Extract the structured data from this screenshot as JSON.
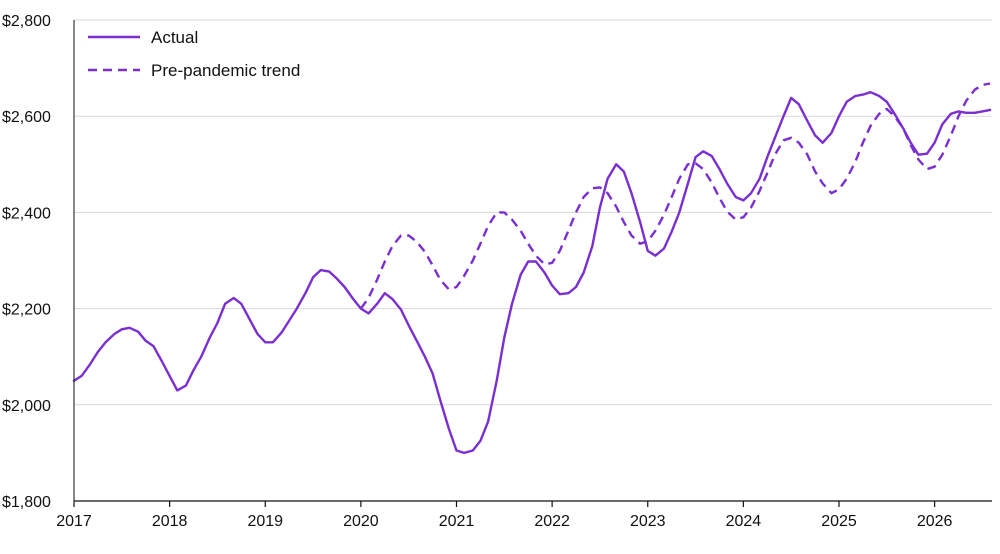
{
  "chart_data": {
    "type": "line",
    "title": "",
    "xlabel": "",
    "ylabel": "",
    "xlim": [
      2017.0,
      2026.6
    ],
    "ylim": [
      1800,
      2800
    ],
    "y_ticks": [
      1800,
      2000,
      2200,
      2400,
      2600,
      2800
    ],
    "y_tick_labels": [
      "$1,800",
      "$2,000",
      "$2,200",
      "$2,400",
      "$2,600",
      "$2,800"
    ],
    "x_ticks": [
      2017,
      2018,
      2019,
      2020,
      2021,
      2022,
      2023,
      2024,
      2025,
      2026
    ],
    "x_tick_labels": [
      "2017",
      "2018",
      "2019",
      "2020",
      "2021",
      "2022",
      "2023",
      "2024",
      "2025",
      "2026"
    ],
    "grid": "horizontal",
    "legend_position": "top-left",
    "colors": {
      "series": "#7b2fd0",
      "grid": "#d9d9d9",
      "axis": "#111111"
    },
    "series": [
      {
        "name": "Actual",
        "style": "solid",
        "x": [
          2017.0,
          2017.08,
          2017.17,
          2017.25,
          2017.33,
          2017.42,
          2017.5,
          2017.58,
          2017.67,
          2017.75,
          2017.83,
          2017.92,
          2018.0,
          2018.08,
          2018.17,
          2018.25,
          2018.33,
          2018.42,
          2018.5,
          2018.58,
          2018.67,
          2018.75,
          2018.83,
          2018.92,
          2019.0,
          2019.08,
          2019.17,
          2019.25,
          2019.33,
          2019.42,
          2019.5,
          2019.58,
          2019.67,
          2019.75,
          2019.83,
          2019.92,
          2020.0,
          2020.08,
          2020.17,
          2020.25,
          2020.33,
          2020.42,
          2020.5,
          2020.58,
          2020.67,
          2020.75,
          2020.83,
          2020.92,
          2021.0,
          2021.08,
          2021.17,
          2021.25,
          2021.33,
          2021.42,
          2021.5,
          2021.58,
          2021.67,
          2021.75,
          2021.83,
          2021.92,
          2022.0,
          2022.08,
          2022.17,
          2022.25,
          2022.33,
          2022.42,
          2022.5,
          2022.58,
          2022.67,
          2022.75,
          2022.83,
          2022.92,
          2023.0,
          2023.08,
          2023.17,
          2023.25,
          2023.33,
          2023.42,
          2023.5,
          2023.58,
          2023.67,
          2023.75,
          2023.83,
          2023.92,
          2024.0,
          2024.08,
          2024.17,
          2024.25,
          2024.33,
          2024.42,
          2024.5,
          2024.58,
          2024.67,
          2024.75,
          2024.83,
          2024.92,
          2025.0,
          2025.08,
          2025.17,
          2025.25,
          2025.33,
          2025.42,
          2025.5,
          2025.58,
          2025.67,
          2025.75,
          2025.83,
          2025.92,
          2026.0,
          2026.08,
          2026.17,
          2026.25,
          2026.33,
          2026.42,
          2026.5,
          2026.58
        ],
        "values": [
          2050,
          2060,
          2085,
          2110,
          2130,
          2147,
          2157,
          2160,
          2152,
          2133,
          2122,
          2090,
          2060,
          2030,
          2040,
          2072,
          2100,
          2140,
          2170,
          2210,
          2222,
          2210,
          2180,
          2147,
          2130,
          2130,
          2150,
          2175,
          2200,
          2232,
          2265,
          2280,
          2277,
          2262,
          2245,
          2220,
          2200,
          2190,
          2210,
          2232,
          2220,
          2198,
          2165,
          2135,
          2100,
          2065,
          2010,
          1950,
          1905,
          1900,
          1905,
          1925,
          1965,
          2050,
          2140,
          2210,
          2270,
          2298,
          2298,
          2275,
          2248,
          2230,
          2232,
          2245,
          2275,
          2330,
          2410,
          2470,
          2500,
          2485,
          2440,
          2380,
          2320,
          2310,
          2325,
          2360,
          2400,
          2460,
          2515,
          2527,
          2517,
          2490,
          2460,
          2432,
          2425,
          2440,
          2470,
          2515,
          2555,
          2600,
          2638,
          2625,
          2590,
          2560,
          2545,
          2565,
          2600,
          2630,
          2642,
          2645,
          2650,
          2642,
          2630,
          2605,
          2575,
          2545,
          2520,
          2522,
          2545,
          2583,
          2605,
          2610,
          2607,
          2607,
          2610,
          2613
        ]
      },
      {
        "name": "Pre-pandemic trend",
        "style": "dashed",
        "x": [
          2020.0,
          2020.08,
          2020.17,
          2020.25,
          2020.33,
          2020.42,
          2020.5,
          2020.58,
          2020.67,
          2020.75,
          2020.83,
          2020.92,
          2021.0,
          2021.08,
          2021.17,
          2021.25,
          2021.33,
          2021.42,
          2021.5,
          2021.58,
          2021.67,
          2021.75,
          2021.83,
          2021.92,
          2022.0,
          2022.08,
          2022.17,
          2022.25,
          2022.33,
          2022.42,
          2022.5,
          2022.58,
          2022.67,
          2022.75,
          2022.83,
          2022.92,
          2023.0,
          2023.08,
          2023.17,
          2023.25,
          2023.33,
          2023.42,
          2023.5,
          2023.58,
          2023.67,
          2023.75,
          2023.83,
          2023.92,
          2024.0,
          2024.08,
          2024.17,
          2024.25,
          2024.33,
          2024.42,
          2024.5,
          2024.58,
          2024.67,
          2024.75,
          2024.83,
          2024.92,
          2025.0,
          2025.08,
          2025.17,
          2025.25,
          2025.33,
          2025.42,
          2025.5,
          2025.58,
          2025.67,
          2025.75,
          2025.83,
          2025.92,
          2026.0,
          2026.08,
          2026.17,
          2026.25,
          2026.33,
          2026.42,
          2026.5,
          2026.58
        ],
        "values": [
          2200,
          2222,
          2260,
          2298,
          2330,
          2352,
          2352,
          2340,
          2318,
          2290,
          2260,
          2240,
          2245,
          2268,
          2300,
          2335,
          2372,
          2400,
          2400,
          2385,
          2362,
          2335,
          2310,
          2292,
          2295,
          2320,
          2362,
          2400,
          2432,
          2450,
          2452,
          2440,
          2412,
          2380,
          2352,
          2335,
          2340,
          2362,
          2395,
          2432,
          2470,
          2500,
          2502,
          2490,
          2462,
          2430,
          2402,
          2385,
          2390,
          2410,
          2445,
          2482,
          2520,
          2550,
          2555,
          2545,
          2520,
          2485,
          2460,
          2440,
          2448,
          2470,
          2505,
          2545,
          2580,
          2605,
          2615,
          2600,
          2575,
          2540,
          2510,
          2490,
          2495,
          2520,
          2560,
          2600,
          2632,
          2655,
          2665,
          2668
        ]
      }
    ]
  }
}
